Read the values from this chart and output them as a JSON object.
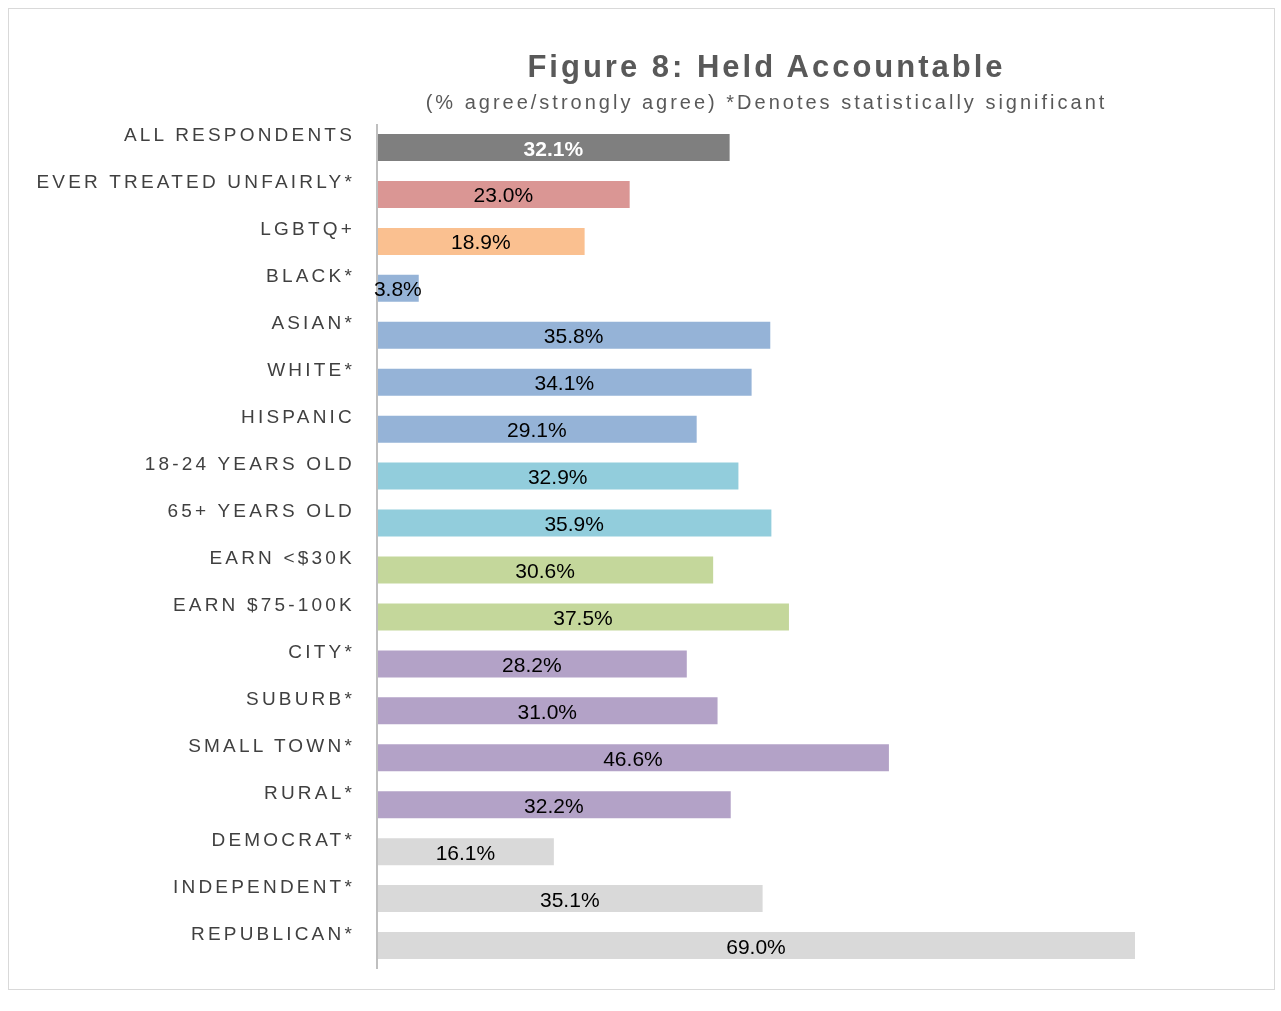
{
  "chart_data": {
    "type": "bar",
    "orientation": "horizontal",
    "title": "Figure 8: Held Accountable",
    "subtitle": "(% agree/strongly agree) *Denotes statistically significant",
    "categories": [
      "ALL RESPONDENTS",
      "EVER TREATED UNFAIRLY*",
      "LGBTQ+",
      "BLACK*",
      "ASIAN*",
      "WHITE*",
      "HISPANIC",
      "18-24 YEARS OLD",
      "65+ YEARS OLD",
      "EARN <$30K",
      "EARN $75-100K",
      "CITY*",
      "SUBURB*",
      "SMALL TOWN*",
      "RURAL*",
      "DEMOCRAT*",
      "INDEPENDENT*",
      "REPUBLICAN*"
    ],
    "values": [
      32.1,
      23.0,
      18.9,
      3.8,
      35.8,
      34.1,
      29.1,
      32.9,
      35.9,
      30.6,
      37.5,
      28.2,
      31.0,
      46.6,
      32.2,
      16.1,
      35.1,
      69.0
    ],
    "value_labels": [
      "32.1%",
      "23.0%",
      "18.9%",
      "3.8%",
      "35.8%",
      "34.1%",
      "29.1%",
      "32.9%",
      "35.9%",
      "30.6%",
      "37.5%",
      "28.2%",
      "31.0%",
      "46.6%",
      "32.2%",
      "16.1%",
      "35.1%",
      "69.0%"
    ],
    "colors": [
      "#7f7f7f",
      "#da9694",
      "#fac090",
      "#95b3d7",
      "#95b3d7",
      "#95b3d7",
      "#95b3d7",
      "#92cddc",
      "#92cddc",
      "#c4d79b",
      "#c4d79b",
      "#b3a2c7",
      "#b3a2c7",
      "#b3a2c7",
      "#b3a2c7",
      "#d9d9d9",
      "#d9d9d9",
      "#d9d9d9"
    ],
    "grid": false,
    "legend": false,
    "tick_labels": "y"
  }
}
